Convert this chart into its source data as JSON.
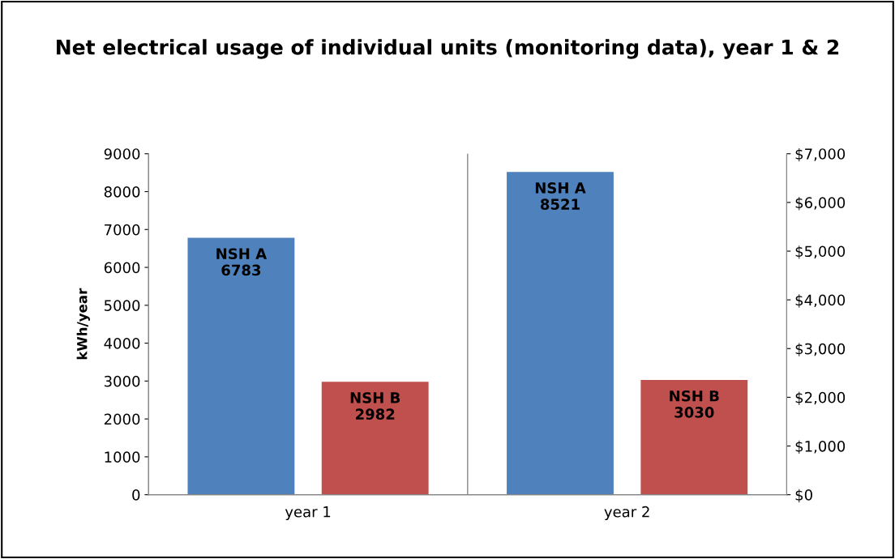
{
  "chart_data": {
    "type": "bar",
    "title": "Net electrical usage of individual units (monitoring data), year 1 & 2",
    "ylabel": "kWh/year",
    "categories": [
      "year 1",
      "year 2"
    ],
    "series": [
      {
        "name": "NSH A",
        "color": "#4f81bd",
        "values": [
          6783,
          8521
        ]
      },
      {
        "name": "NSH B",
        "color": "#c0504d",
        "values": [
          2982,
          3030
        ]
      }
    ],
    "data_labels": true,
    "ylim": [
      0,
      9000
    ],
    "yticks": [
      0,
      1000,
      2000,
      3000,
      4000,
      5000,
      6000,
      7000,
      8000,
      9000
    ],
    "y2lim": [
      0,
      7000
    ],
    "y2ticks": [
      {
        "value": 0,
        "label": "$0"
      },
      {
        "value": 1000,
        "label": "$1,000"
      },
      {
        "value": 2000,
        "label": "$2,000"
      },
      {
        "value": 3000,
        "label": "$3,000"
      },
      {
        "value": 4000,
        "label": "$4,000"
      },
      {
        "value": 5000,
        "label": "$5,000"
      },
      {
        "value": 6000,
        "label": "$6,000"
      },
      {
        "value": 7000,
        "label": "$7,000"
      }
    ],
    "grid": "x",
    "legend": false
  }
}
